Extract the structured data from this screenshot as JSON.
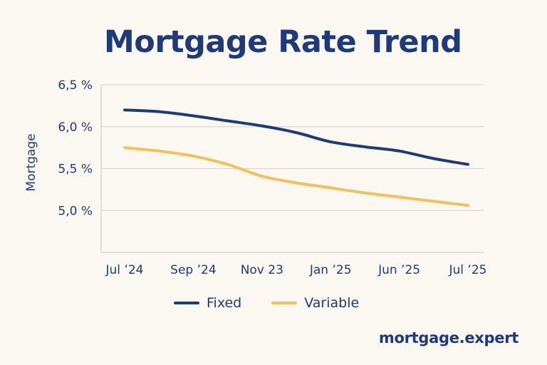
{
  "chart_data": {
    "type": "line",
    "title": "Mortgage Rate Trend",
    "xlabel": "",
    "ylabel": "Mortgage",
    "categories": [
      "Jul ’24",
      "Sep ’24",
      "Nov 23",
      "Jan ’25",
      "Jun ’25",
      "Jul ’25"
    ],
    "yticks": [
      "5,0 %",
      "5,5 %",
      "6,0 %",
      "6,5 %"
    ],
    "ylim": [
      4.5,
      6.5
    ],
    "grid": true,
    "legend_position": "bottom",
    "series": [
      {
        "name": "Fixed",
        "color": "#1f3a78",
        "x": [
          0,
          0.5,
          1,
          1.5,
          2,
          2.5,
          3,
          3.5,
          4,
          4.5,
          5
        ],
        "values": [
          6.2,
          6.18,
          6.13,
          6.07,
          6.01,
          5.93,
          5.82,
          5.76,
          5.71,
          5.62,
          5.55
        ]
      },
      {
        "name": "Variable",
        "color": "#f1c25c",
        "x": [
          0,
          0.5,
          1,
          1.5,
          2,
          2.5,
          3,
          3.5,
          4,
          4.5,
          5
        ],
        "values": [
          5.75,
          5.71,
          5.65,
          5.55,
          5.41,
          5.33,
          5.27,
          5.21,
          5.16,
          5.11,
          5.06
        ]
      }
    ]
  },
  "legend": {
    "fixed_label": "Fixed",
    "variable_label": "Variable"
  },
  "brand": "mortgage.expert"
}
